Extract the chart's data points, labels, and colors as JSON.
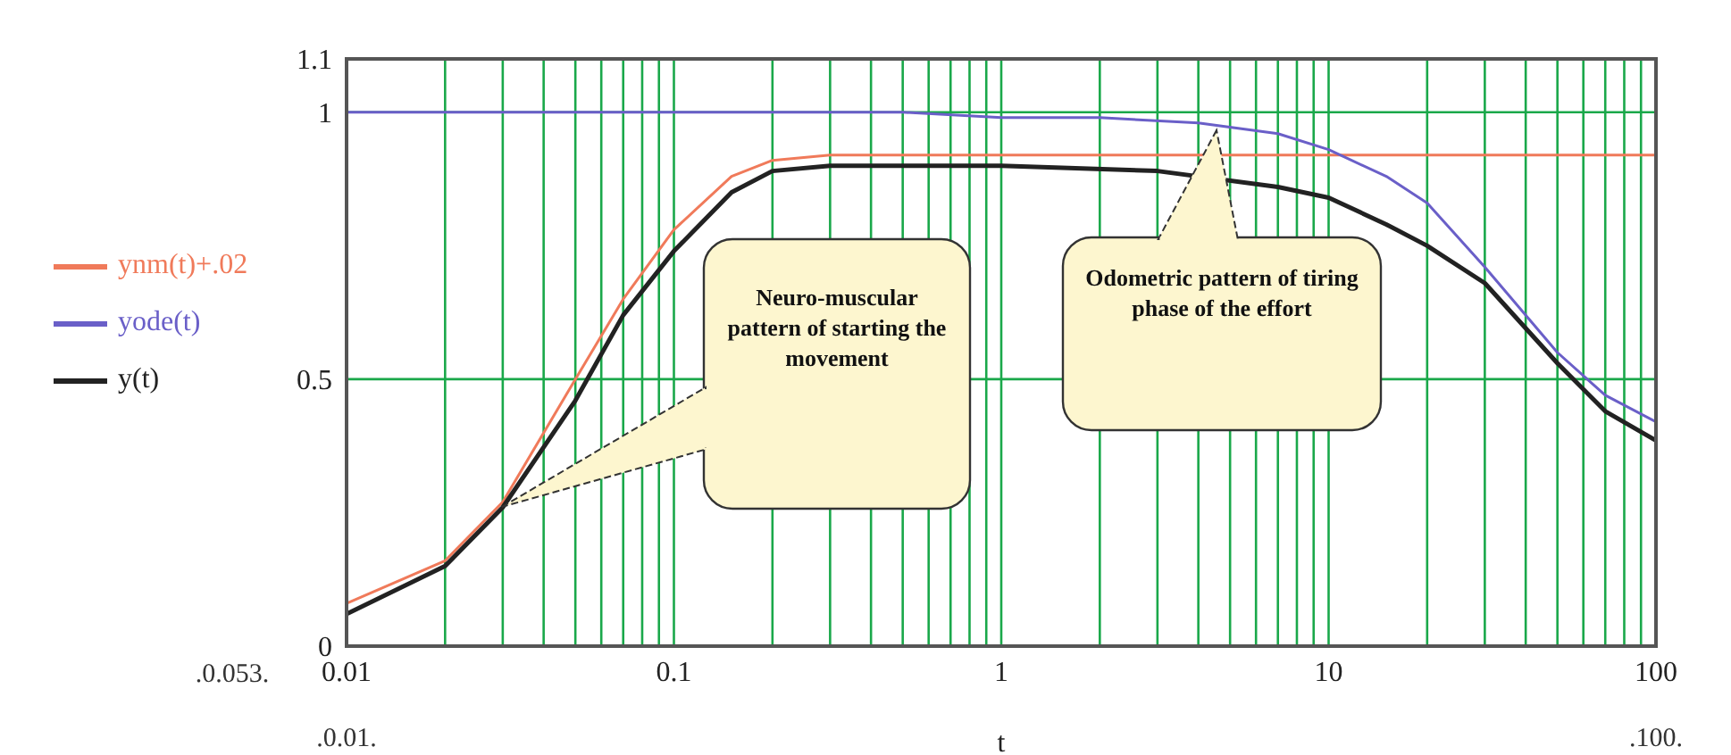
{
  "chart_data": {
    "type": "line",
    "xlabel": "t",
    "log": "x",
    "xlim": [
      0.01,
      100
    ],
    "xticks": [
      0.01,
      {
        "value": 0.02,
        "label": null
      },
      {
        "value": 0.03,
        "label": null
      },
      {
        "value": 0.04,
        "label": null
      },
      {
        "value": 0.05,
        "label": null
      },
      {
        "value": 0.06,
        "label": null
      },
      {
        "value": 0.07,
        "label": null
      },
      {
        "value": 0.08,
        "label": null
      },
      {
        "value": 0.09,
        "label": null
      },
      0.1,
      {
        "value": 0.2,
        "label": null
      },
      {
        "value": 0.3,
        "label": null
      },
      {
        "value": 0.4,
        "label": null
      },
      {
        "value": 0.5,
        "label": null
      },
      {
        "value": 0.6,
        "label": null
      },
      {
        "value": 0.7,
        "label": null
      },
      {
        "value": 0.8,
        "label": null
      },
      {
        "value": 0.9,
        "label": null
      },
      1,
      {
        "value": 2,
        "label": null
      },
      {
        "value": 3,
        "label": null
      },
      {
        "value": 4,
        "label": null
      },
      {
        "value": 5,
        "label": null
      },
      {
        "value": 6,
        "label": null
      },
      {
        "value": 7,
        "label": null
      },
      {
        "value": 8,
        "label": null
      },
      {
        "value": 9,
        "label": null
      },
      10,
      {
        "value": 20,
        "label": null
      },
      {
        "value": 30,
        "label": null
      },
      {
        "value": 40,
        "label": null
      },
      {
        "value": 50,
        "label": null
      },
      {
        "value": 60,
        "label": null
      },
      {
        "value": 70,
        "label": null
      },
      {
        "value": 80,
        "label": null
      },
      {
        "value": 90,
        "label": null
      },
      100
    ],
    "ylim": [
      0,
      1.1
    ],
    "yticks": [
      0,
      0.5,
      1,
      1.1
    ],
    "grid": true,
    "legend": "left",
    "series": [
      {
        "name": "ynm(t)+.02",
        "color": "#f07a5a",
        "x": [
          0.01,
          0.02,
          0.03,
          0.05,
          0.07,
          0.1,
          0.15,
          0.2,
          0.3,
          1,
          10,
          100
        ],
        "values": [
          0.08,
          0.16,
          0.27,
          0.5,
          0.65,
          0.78,
          0.88,
          0.91,
          0.92,
          0.92,
          0.92,
          0.92
        ]
      },
      {
        "name": "yode(t)",
        "color": "#6a5fc8",
        "x": [
          0.01,
          0.1,
          0.5,
          1,
          2,
          4,
          7,
          10,
          15,
          20,
          30,
          50,
          70,
          100
        ],
        "values": [
          1,
          1,
          1,
          0.99,
          0.99,
          0.98,
          0.96,
          0.93,
          0.88,
          0.83,
          0.71,
          0.55,
          0.47,
          0.42
        ]
      },
      {
        "name": "y(t)",
        "color": "#222222",
        "x": [
          0.01,
          0.02,
          0.03,
          0.05,
          0.07,
          0.1,
          0.15,
          0.2,
          0.3,
          1,
          3,
          7,
          10,
          15,
          20,
          30,
          50,
          70,
          100
        ],
        "values": [
          0.06,
          0.15,
          0.26,
          0.46,
          0.62,
          0.74,
          0.85,
          0.89,
          0.9,
          0.9,
          0.89,
          0.86,
          0.84,
          0.79,
          0.75,
          0.68,
          0.53,
          0.44,
          0.385
        ]
      }
    ],
    "annotations": [
      "Neuro-muscular pattern of starting the movement",
      "Odometric pattern of tiring phase of the effort",
      ".0.053.",
      ".0.01.",
      ".100."
    ]
  }
}
